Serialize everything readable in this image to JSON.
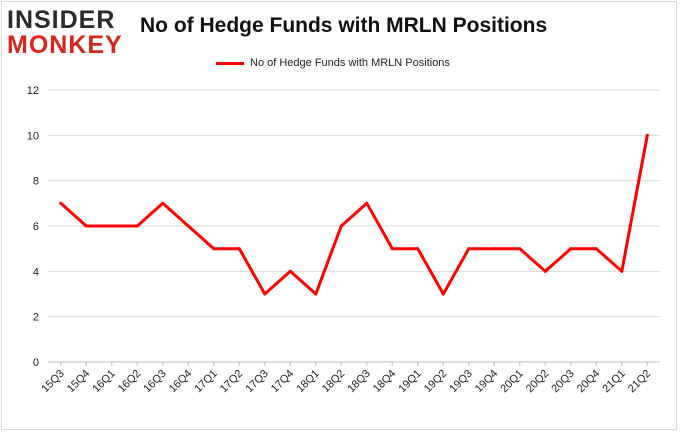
{
  "logo": {
    "line1": "INSIDER",
    "line2": "MONKEY"
  },
  "chart_data": {
    "type": "line",
    "title": "No of Hedge Funds with MRLN Positions",
    "xlabel": "",
    "ylabel": "",
    "categories": [
      "15Q3",
      "15Q4",
      "16Q1",
      "16Q2",
      "16Q3",
      "16Q4",
      "17Q1",
      "17Q2",
      "17Q3",
      "17Q4",
      "18Q1",
      "18Q2",
      "18Q3",
      "18Q4",
      "19Q1",
      "19Q2",
      "19Q3",
      "19Q4",
      "20Q1",
      "20Q2",
      "20Q3",
      "20Q4",
      "21Q1",
      "21Q2"
    ],
    "series": [
      {
        "name": "No of Hedge Funds with MRLN Positions",
        "color": "#ff0000",
        "values": [
          7,
          6,
          6,
          6,
          7,
          6,
          5,
          5,
          3,
          4,
          3,
          6,
          7,
          5,
          5,
          3,
          5,
          5,
          5,
          4,
          5,
          5,
          4,
          10
        ]
      }
    ],
    "ylim": [
      0,
      12
    ],
    "yticks": [
      0,
      2,
      4,
      6,
      8,
      10,
      12
    ],
    "grid": true,
    "legend": "top-center"
  }
}
